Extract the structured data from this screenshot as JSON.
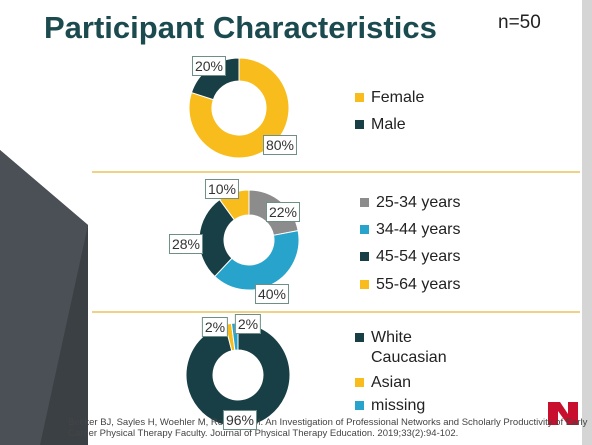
{
  "slide": {
    "title": "Participant Characteristics",
    "note": "n=50",
    "citation": "Becker BJ, Sayles H, Woehler M, Rowlett GM. An Investigation of Professional Networks and Scholarly Productivity of Early Career Physical Therapy Faculty. Journal of Physical Therapy Education. 2019;33(2):94-102."
  },
  "chart_data": [
    {
      "type": "pie",
      "categories": [
        "Female",
        "Male"
      ],
      "values": [
        80,
        20
      ],
      "value_labels": [
        "80%",
        "20%"
      ],
      "colors": [
        "#f8bd1c",
        "#173f45"
      ]
    },
    {
      "type": "pie",
      "categories": [
        "25-34 years",
        "34-44 years",
        "45-54 years",
        "55-64 years"
      ],
      "values": [
        22,
        40,
        28,
        10
      ],
      "value_labels": [
        "22%",
        "40%",
        "28%",
        "10%"
      ],
      "colors": [
        "#8c8c8c",
        "#27a3cc",
        "#173f45",
        "#f8bd1c"
      ]
    },
    {
      "type": "pie",
      "categories": [
        "White Caucasian",
        "Asian",
        "missing"
      ],
      "values": [
        96,
        2,
        2
      ],
      "value_labels": [
        "96%",
        "2%",
        "2%"
      ],
      "colors": [
        "#173f45",
        "#f8bd1c",
        "#27a3cc"
      ]
    }
  ]
}
